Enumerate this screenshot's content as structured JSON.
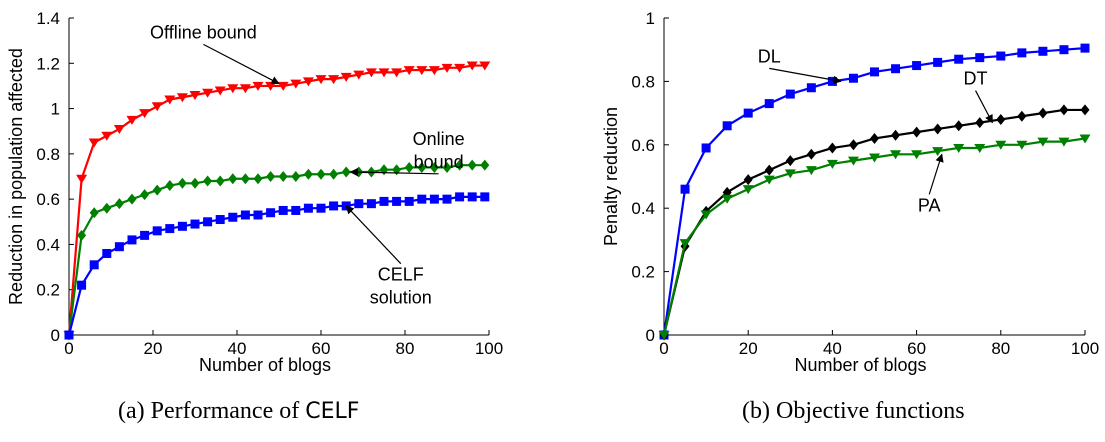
{
  "captions": {
    "a_prefix": "(a) Performance of ",
    "a_name": "CELF",
    "b": "(b) Objective functions"
  },
  "chart_data": [
    {
      "type": "line",
      "title": "",
      "xlabel": "Number of blogs",
      "ylabel": "Reduction in population affected",
      "xlim": [
        0,
        100
      ],
      "ylim": [
        0,
        1.4
      ],
      "xticks": [
        "0",
        "20",
        "40",
        "60",
        "80",
        "100"
      ],
      "yticks": [
        "0",
        "0.2",
        "0.4",
        "0.6",
        "0.8",
        "1",
        "1.2",
        "1.4"
      ],
      "grid": false,
      "legend": "none",
      "series": [
        {
          "name": "Offline bound",
          "color": "#ff0000",
          "marker": "triangle-down",
          "x": [
            0,
            3,
            6,
            9,
            12,
            15,
            18,
            21,
            24,
            27,
            30,
            33,
            36,
            39,
            42,
            45,
            48,
            51,
            54,
            57,
            60,
            63,
            66,
            69,
            72,
            75,
            78,
            81,
            84,
            87,
            90,
            93,
            96,
            99
          ],
          "y": [
            0,
            0.69,
            0.85,
            0.88,
            0.91,
            0.95,
            0.98,
            1.01,
            1.04,
            1.05,
            1.06,
            1.07,
            1.08,
            1.09,
            1.09,
            1.1,
            1.1,
            1.1,
            1.11,
            1.12,
            1.13,
            1.13,
            1.14,
            1.15,
            1.16,
            1.16,
            1.16,
            1.17,
            1.17,
            1.17,
            1.18,
            1.18,
            1.19,
            1.19
          ]
        },
        {
          "name": "Online bound",
          "color": "#008000",
          "marker": "diamond",
          "x": [
            0,
            3,
            6,
            9,
            12,
            15,
            18,
            21,
            24,
            27,
            30,
            33,
            36,
            39,
            42,
            45,
            48,
            51,
            54,
            57,
            60,
            63,
            66,
            69,
            72,
            75,
            78,
            81,
            84,
            87,
            90,
            93,
            96,
            99
          ],
          "y": [
            0,
            0.44,
            0.54,
            0.56,
            0.58,
            0.6,
            0.62,
            0.64,
            0.66,
            0.67,
            0.67,
            0.68,
            0.68,
            0.69,
            0.69,
            0.69,
            0.7,
            0.7,
            0.7,
            0.71,
            0.71,
            0.71,
            0.72,
            0.72,
            0.72,
            0.73,
            0.73,
            0.74,
            0.74,
            0.74,
            0.74,
            0.75,
            0.75,
            0.75
          ]
        },
        {
          "name": "CELF solution",
          "color": "#0000ff",
          "marker": "square",
          "x": [
            0,
            3,
            6,
            9,
            12,
            15,
            18,
            21,
            24,
            27,
            30,
            33,
            36,
            39,
            42,
            45,
            48,
            51,
            54,
            57,
            60,
            63,
            66,
            69,
            72,
            75,
            78,
            81,
            84,
            87,
            90,
            93,
            96,
            99
          ],
          "y": [
            0,
            0.22,
            0.31,
            0.36,
            0.39,
            0.42,
            0.44,
            0.46,
            0.47,
            0.48,
            0.49,
            0.5,
            0.51,
            0.52,
            0.53,
            0.53,
            0.54,
            0.55,
            0.55,
            0.56,
            0.56,
            0.57,
            0.57,
            0.58,
            0.58,
            0.59,
            0.59,
            0.59,
            0.6,
            0.6,
            0.6,
            0.61,
            0.61,
            0.61
          ]
        }
      ],
      "annotations": [
        {
          "lines": [
            "Offline bound"
          ],
          "x": 32,
          "y": 1.31,
          "arrow_x": 50,
          "arrow_y": 1.11
        },
        {
          "lines": [
            "Online",
            "bound"
          ],
          "x": 88,
          "y": 0.84,
          "arrow_x": 67,
          "arrow_y": 0.72
        },
        {
          "lines": [
            "CELF",
            "solution"
          ],
          "x": 79,
          "y": 0.24,
          "arrow_x": 66,
          "arrow_y": 0.57
        }
      ]
    },
    {
      "type": "line",
      "title": "",
      "xlabel": "Number of blogs",
      "ylabel": "Penalty reduction",
      "xlim": [
        0,
        100
      ],
      "ylim": [
        0,
        1
      ],
      "xticks": [
        "0",
        "20",
        "40",
        "60",
        "80",
        "100"
      ],
      "yticks": [
        "0",
        "0.2",
        "0.4",
        "0.6",
        "0.8",
        "1"
      ],
      "grid": false,
      "legend": "none",
      "series": [
        {
          "name": "DL",
          "color": "#0000ff",
          "marker": "square",
          "x": [
            0,
            5,
            10,
            15,
            20,
            25,
            30,
            35,
            40,
            45,
            50,
            55,
            60,
            65,
            70,
            75,
            80,
            85,
            90,
            95,
            100
          ],
          "y": [
            0,
            0.46,
            0.59,
            0.66,
            0.7,
            0.73,
            0.76,
            0.78,
            0.8,
            0.81,
            0.83,
            0.84,
            0.85,
            0.86,
            0.87,
            0.875,
            0.88,
            0.89,
            0.895,
            0.9,
            0.905
          ]
        },
        {
          "name": "DT",
          "color": "#000000",
          "marker": "diamond",
          "x": [
            0,
            5,
            10,
            15,
            20,
            25,
            30,
            35,
            40,
            45,
            50,
            55,
            60,
            65,
            70,
            75,
            80,
            85,
            90,
            95,
            100
          ],
          "y": [
            0,
            0.28,
            0.39,
            0.45,
            0.49,
            0.52,
            0.55,
            0.57,
            0.59,
            0.6,
            0.62,
            0.63,
            0.64,
            0.65,
            0.66,
            0.67,
            0.68,
            0.69,
            0.7,
            0.71,
            0.71
          ]
        },
        {
          "name": "PA",
          "color": "#008000",
          "marker": "triangle-down",
          "x": [
            0,
            5,
            10,
            15,
            20,
            25,
            30,
            35,
            40,
            45,
            50,
            55,
            60,
            65,
            70,
            75,
            80,
            85,
            90,
            95,
            100
          ],
          "y": [
            0,
            0.29,
            0.38,
            0.43,
            0.46,
            0.49,
            0.51,
            0.52,
            0.54,
            0.55,
            0.56,
            0.57,
            0.57,
            0.58,
            0.59,
            0.59,
            0.6,
            0.6,
            0.61,
            0.61,
            0.62
          ]
        }
      ],
      "annotations": [
        {
          "lines": [
            "DL"
          ],
          "x": 25,
          "y": 0.86,
          "arrow_x": 42,
          "arrow_y": 0.8
        },
        {
          "lines": [
            "DT"
          ],
          "x": 74,
          "y": 0.79,
          "arrow_x": 78,
          "arrow_y": 0.67
        },
        {
          "lines": [
            "PA"
          ],
          "x": 63,
          "y": 0.39,
          "arrow_x": 66,
          "arrow_y": 0.57
        }
      ]
    }
  ]
}
